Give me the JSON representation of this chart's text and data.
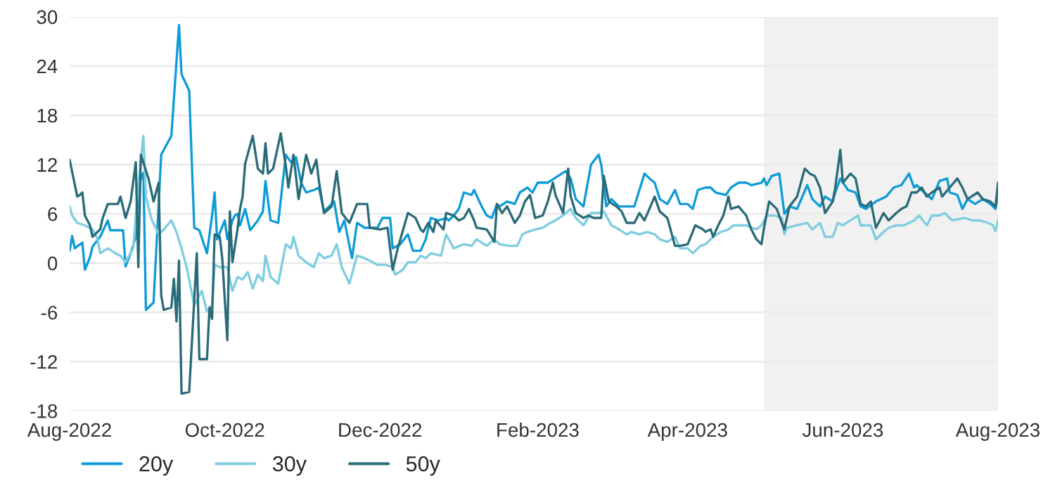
{
  "chart_data": {
    "type": "line",
    "xlim": [
      "2022-08-01",
      "2023-08-01"
    ],
    "xticks": [
      {
        "value": "2022-08-01",
        "label": "Aug-2022"
      },
      {
        "value": "2022-10-01",
        "label": "Oct-2022"
      },
      {
        "value": "2022-12-01",
        "label": "Dec-2022"
      },
      {
        "value": "2023-02-01",
        "label": "Feb-2023"
      },
      {
        "value": "2023-04-01",
        "label": "Apr-2023"
      },
      {
        "value": "2023-06-01",
        "label": "Jun-2023"
      },
      {
        "value": "2023-08-01",
        "label": "Aug-2023"
      }
    ],
    "ylim": [
      -18,
      30
    ],
    "yticks": [
      -18,
      -12,
      -6,
      0,
      6,
      12,
      18,
      24,
      30
    ],
    "grid": "y",
    "legend": "bottom left",
    "marker": "none",
    "line_style": "solid",
    "bands": [
      {
        "axis": "x",
        "from": "2023-05-01",
        "to": "2023-08-01",
        "color": "#f2f1f2"
      }
    ],
    "series": [
      {
        "name": "20y",
        "color": "#0e9bd8",
        "x": [
          "2022-08-01",
          "2022-08-02",
          "2022-08-03",
          "2022-08-06",
          "2022-08-07",
          "2022-08-09",
          "2022-08-10",
          "2022-08-13",
          "2022-08-16",
          "2022-08-17",
          "2022-08-22",
          "2022-08-23",
          "2022-08-25",
          "2022-08-27",
          "2022-08-28",
          "2022-08-30",
          "2022-08-31",
          "2022-09-03",
          "2022-09-06",
          "2022-09-10",
          "2022-09-13",
          "2022-09-14",
          "2022-09-17",
          "2022-09-19",
          "2022-09-21",
          "2022-09-24",
          "2022-09-26",
          "2022-09-27",
          "2022-09-28",
          "2022-10-01",
          "2022-10-02",
          "2022-10-04",
          "2022-10-05",
          "2022-10-06",
          "2022-10-07",
          "2022-10-09",
          "2022-10-11",
          "2022-10-14",
          "2022-10-16",
          "2022-10-17",
          "2022-10-19",
          "2022-10-22",
          "2022-10-25",
          "2022-10-27",
          "2022-10-29",
          "2022-10-31",
          "2022-11-02",
          "2022-11-05",
          "2022-11-07",
          "2022-11-09",
          "2022-11-13",
          "2022-11-15",
          "2022-11-17",
          "2022-11-20",
          "2022-11-22",
          "2022-11-25",
          "2022-11-27",
          "2022-11-30",
          "2022-12-02",
          "2022-12-05",
          "2022-12-06",
          "2022-12-09",
          "2022-12-12",
          "2022-12-14",
          "2022-12-17",
          "2022-12-19",
          "2022-12-21",
          "2022-12-24",
          "2022-12-27",
          "2022-12-28",
          "2022-12-30",
          "2023-01-01",
          "2023-01-03",
          "2023-01-06",
          "2023-01-07",
          "2023-01-10",
          "2023-01-12",
          "2023-01-14",
          "2023-01-16",
          "2023-01-17",
          "2023-01-20",
          "2023-01-23",
          "2023-01-25",
          "2023-01-28",
          "2023-01-30",
          "2023-02-01",
          "2023-02-05",
          "2023-02-06",
          "2023-02-09",
          "2023-02-12",
          "2023-02-14",
          "2023-02-16",
          "2023-02-19",
          "2023-02-22",
          "2023-02-25",
          "2023-02-26",
          "2023-02-28",
          "2023-03-02",
          "2023-03-05",
          "2023-03-08",
          "2023-03-11",
          "2023-03-13",
          "2023-03-15",
          "2023-03-17",
          "2023-03-19",
          "2023-03-21",
          "2023-03-24",
          "2023-03-27",
          "2023-03-29",
          "2023-04-01",
          "2023-04-03",
          "2023-04-05",
          "2023-04-08",
          "2023-04-10",
          "2023-04-12",
          "2023-04-16",
          "2023-04-18",
          "2023-04-21",
          "2023-04-24",
          "2023-04-26",
          "2023-04-30",
          "2023-05-01",
          "2023-05-02",
          "2023-05-04",
          "2023-05-07",
          "2023-05-09",
          "2023-05-11",
          "2023-05-14",
          "2023-05-18",
          "2023-05-20",
          "2023-05-23",
          "2023-05-25",
          "2023-05-28",
          "2023-05-29",
          "2023-05-31",
          "2023-06-03",
          "2023-06-06",
          "2023-06-08",
          "2023-06-10",
          "2023-06-14",
          "2023-06-18",
          "2023-06-21",
          "2023-06-24",
          "2023-06-27",
          "2023-06-29",
          "2023-06-30",
          "2023-07-03",
          "2023-07-06",
          "2023-07-09",
          "2023-07-12",
          "2023-07-13",
          "2023-07-16",
          "2023-07-18",
          "2023-07-20",
          "2023-07-23",
          "2023-07-26",
          "2023-07-29",
          "2023-07-31",
          "2023-08-01"
        ],
        "values": [
          1.5,
          3.3,
          1.8,
          2.5,
          -0.8,
          0.7,
          2,
          3.2,
          5.2,
          4,
          4,
          -0.4,
          1.2,
          3.2,
          9.5,
          11,
          -5.7,
          -4.8,
          13.2,
          15.5,
          29,
          23,
          21,
          4.3,
          4,
          1.2,
          5.8,
          8.6,
          2.9,
          5.2,
          2.9,
          5.2,
          5.8,
          6,
          4.6,
          6.6,
          4,
          5.2,
          6.3,
          10,
          5.2,
          4.9,
          13.2,
          12.3,
          12.9,
          9.8,
          8.6,
          8.9,
          9.2,
          6.3,
          7.5,
          3.8,
          5.2,
          0.6,
          4.9,
          4.3,
          4.3,
          4.3,
          5.5,
          5.5,
          1.8,
          2.3,
          3.5,
          1.5,
          1.5,
          2.9,
          5.5,
          5.2,
          5.5,
          5.2,
          5.8,
          6.6,
          8.6,
          8.3,
          8.9,
          6.9,
          5.8,
          5.5,
          7.2,
          6.9,
          7.5,
          7.2,
          8.6,
          9.2,
          8.6,
          9.8,
          9.8,
          10,
          10.6,
          11.2,
          10.3,
          7.8,
          6.9,
          12,
          13.2,
          12,
          6.9,
          7.8,
          6.9,
          6.9,
          6.9,
          8.9,
          10.9,
          10.3,
          9.8,
          7.8,
          7.2,
          8.9,
          7.2,
          7.2,
          6.6,
          8.9,
          9.2,
          9.2,
          8.6,
          8.3,
          9.2,
          9.8,
          9.8,
          9.5,
          9.8,
          10.3,
          9.5,
          10.6,
          10.9,
          6,
          6.9,
          6.6,
          9.5,
          7.8,
          6.9,
          8.1,
          7.5,
          8.6,
          10.3,
          8.9,
          8.6,
          6.9,
          6.6,
          7.5,
          8.1,
          9.2,
          9.5,
          10.9,
          9.2,
          9.5,
          8.6,
          7.8,
          10,
          10.3,
          8.6,
          8.3,
          6.6,
          7.8,
          7.2,
          7.8,
          7.2,
          6.6,
          8.3
        ]
      },
      {
        "name": "30y",
        "color": "#7fcde0",
        "x": [
          "2022-08-01",
          "2022-08-02",
          "2022-08-04",
          "2022-08-07",
          "2022-08-10",
          "2022-08-12",
          "2022-08-13",
          "2022-08-16",
          "2022-08-19",
          "2022-08-21",
          "2022-08-23",
          "2022-08-26",
          "2022-08-28",
          "2022-08-30",
          "2022-08-31",
          "2022-09-02",
          "2022-09-05",
          "2022-09-07",
          "2022-09-10",
          "2022-09-12",
          "2022-09-14",
          "2022-09-16",
          "2022-09-19",
          "2022-09-22",
          "2022-09-24",
          "2022-09-26",
          "2022-09-27",
          "2022-09-29",
          "2022-10-02",
          "2022-10-04",
          "2022-10-06",
          "2022-10-08",
          "2022-10-10",
          "2022-10-12",
          "2022-10-14",
          "2022-10-16",
          "2022-10-17",
          "2022-10-19",
          "2022-10-22",
          "2022-10-25",
          "2022-10-27",
          "2022-10-28",
          "2022-10-30",
          "2022-11-02",
          "2022-11-05",
          "2022-11-07",
          "2022-11-09",
          "2022-11-12",
          "2022-11-14",
          "2022-11-16",
          "2022-11-19",
          "2022-11-22",
          "2022-11-25",
          "2022-11-27",
          "2022-11-30",
          "2022-12-03",
          "2022-12-06",
          "2022-12-07",
          "2022-12-10",
          "2022-12-12",
          "2022-12-15",
          "2022-12-17",
          "2022-12-19",
          "2022-12-21",
          "2022-12-25",
          "2022-12-27",
          "2022-12-30",
          "2023-01-03",
          "2023-01-06",
          "2023-01-08",
          "2023-01-12",
          "2023-01-15",
          "2023-01-17",
          "2023-01-21",
          "2023-01-24",
          "2023-01-26",
          "2023-01-28",
          "2023-01-31",
          "2023-02-03",
          "2023-02-06",
          "2023-02-08",
          "2023-02-11",
          "2023-02-14",
          "2023-02-16",
          "2023-02-19",
          "2023-02-22",
          "2023-02-25",
          "2023-02-27",
          "2023-03-02",
          "2023-03-05",
          "2023-03-08",
          "2023-03-10",
          "2023-03-13",
          "2023-03-16",
          "2023-03-19",
          "2023-03-21",
          "2023-03-24",
          "2023-03-27",
          "2023-03-29",
          "2023-04-01",
          "2023-04-03",
          "2023-04-06",
          "2023-04-08",
          "2023-04-11",
          "2023-04-14",
          "2023-04-17",
          "2023-04-19",
          "2023-04-22",
          "2023-04-24",
          "2023-04-28",
          "2023-04-30",
          "2023-05-02",
          "2023-05-05",
          "2023-05-08",
          "2023-05-09",
          "2023-05-10",
          "2023-05-14",
          "2023-05-18",
          "2023-05-20",
          "2023-05-23",
          "2023-05-25",
          "2023-05-28",
          "2023-05-30",
          "2023-06-01",
          "2023-06-04",
          "2023-06-07",
          "2023-06-08",
          "2023-06-12",
          "2023-06-14",
          "2023-06-17",
          "2023-06-19",
          "2023-06-22",
          "2023-06-25",
          "2023-06-29",
          "2023-07-01",
          "2023-07-04",
          "2023-07-06",
          "2023-07-09",
          "2023-07-11",
          "2023-07-14",
          "2023-07-19",
          "2023-07-22",
          "2023-07-25",
          "2023-07-28",
          "2023-07-30",
          "2023-07-31",
          "2023-08-01"
        ],
        "values": [
          6.9,
          5.8,
          4.9,
          4.6,
          4.1,
          2.9,
          1.2,
          1.8,
          1.2,
          0.9,
          0.1,
          1.8,
          9.5,
          15.5,
          8.1,
          5.5,
          3.5,
          4.1,
          5.2,
          3.8,
          1.8,
          -0.5,
          -5.1,
          -3.4,
          -5.9,
          -5.1,
          -0.2,
          -0.5,
          -0.5,
          -3.4,
          -1.7,
          -2,
          -1.1,
          -3.1,
          -1.4,
          -2.2,
          0.9,
          -1.7,
          -2.5,
          2.3,
          1.8,
          3.2,
          0.9,
          0.1,
          -0.5,
          1.2,
          0.6,
          0.9,
          2.3,
          -0.5,
          -2.5,
          0.9,
          0.6,
          0.3,
          -0.2,
          -0.2,
          -0.5,
          -1.4,
          -0.8,
          0.1,
          0.1,
          0.9,
          0.6,
          1.2,
          0.9,
          3.5,
          1.8,
          2.3,
          2.1,
          2.9,
          2.1,
          2.9,
          2.3,
          2.1,
          2.1,
          3.5,
          3.8,
          4.1,
          4.3,
          4.9,
          5.2,
          5.8,
          6.6,
          5.5,
          4.6,
          6.1,
          6.1,
          6.3,
          4.6,
          4.1,
          3.5,
          3.8,
          3.5,
          3.8,
          3.5,
          2.9,
          2.6,
          3.2,
          1.8,
          1.8,
          1.2,
          2.1,
          2.3,
          3.2,
          3.8,
          4.1,
          4.6,
          4.6,
          4.6,
          4.1,
          4.6,
          5.8,
          5.8,
          5.5,
          3.5,
          4.3,
          4.6,
          4.9,
          4.1,
          4.9,
          3.2,
          3.2,
          4.9,
          4.6,
          5.2,
          5.8,
          4.6,
          4.6,
          2.9,
          3.8,
          4.3,
          4.6,
          4.6,
          5.2,
          5.8,
          4.6,
          5.8,
          5.8,
          6.1,
          5.2,
          5.5,
          5.2,
          5.2,
          4.9,
          4.6,
          3.9,
          5.2
        ]
      },
      {
        "name": "50y",
        "color": "#2a6b78",
        "x": [
          "2022-08-01",
          "2022-08-04",
          "2022-08-05",
          "2022-08-06",
          "2022-08-07",
          "2022-08-09",
          "2022-08-10",
          "2022-08-13",
          "2022-08-14",
          "2022-08-16",
          "2022-08-18",
          "2022-08-20",
          "2022-08-21",
          "2022-08-23",
          "2022-08-25",
          "2022-08-27",
          "2022-08-28",
          "2022-08-29",
          "2022-09-01",
          "2022-09-03",
          "2022-09-05",
          "2022-09-06",
          "2022-09-07",
          "2022-09-10",
          "2022-09-11",
          "2022-09-12",
          "2022-09-13",
          "2022-09-14",
          "2022-09-17",
          "2022-09-20",
          "2022-09-21",
          "2022-09-24",
          "2022-09-25",
          "2022-09-26",
          "2022-09-27",
          "2022-09-29",
          "2022-09-30",
          "2022-10-02",
          "2022-10-03",
          "2022-10-04",
          "2022-10-06",
          "2022-10-07",
          "2022-10-08",
          "2022-10-09",
          "2022-10-12",
          "2022-10-14",
          "2022-10-16",
          "2022-10-17",
          "2022-10-18",
          "2022-10-20",
          "2022-10-23",
          "2022-10-25",
          "2022-10-26",
          "2022-10-28",
          "2022-10-30",
          "2022-11-02",
          "2022-11-04",
          "2022-11-06",
          "2022-11-07",
          "2022-11-09",
          "2022-11-12",
          "2022-11-14",
          "2022-11-16",
          "2022-11-19",
          "2022-11-22",
          "2022-11-26",
          "2022-11-27",
          "2022-12-01",
          "2022-12-04",
          "2022-12-06",
          "2022-12-08",
          "2022-12-12",
          "2022-12-15",
          "2022-12-17",
          "2022-12-18",
          "2022-12-20",
          "2022-12-22",
          "2022-12-23",
          "2022-12-26",
          "2022-12-27",
          "2022-12-30",
          "2023-01-01",
          "2023-01-03",
          "2023-01-05",
          "2023-01-07",
          "2023-01-08",
          "2023-01-12",
          "2023-01-15",
          "2023-01-16",
          "2023-01-18",
          "2023-01-20",
          "2023-01-23",
          "2023-01-25",
          "2023-01-27",
          "2023-01-29",
          "2023-01-31",
          "2023-02-03",
          "2023-02-05",
          "2023-02-07",
          "2023-02-08",
          "2023-02-11",
          "2023-02-13",
          "2023-02-14",
          "2023-02-16",
          "2023-02-19",
          "2023-02-21",
          "2023-02-23",
          "2023-02-26",
          "2023-02-27",
          "2023-03-01",
          "2023-03-04",
          "2023-03-06",
          "2023-03-08",
          "2023-03-11",
          "2023-03-13",
          "2023-03-15",
          "2023-03-19",
          "2023-03-21",
          "2023-03-24",
          "2023-03-27",
          "2023-03-29",
          "2023-04-01",
          "2023-04-04",
          "2023-04-07",
          "2023-04-08",
          "2023-04-10",
          "2023-04-11",
          "2023-04-13",
          "2023-04-15",
          "2023-04-17",
          "2023-04-18",
          "2023-04-21",
          "2023-04-24",
          "2023-04-26",
          "2023-04-28",
          "2023-04-30",
          "2023-05-01",
          "2023-05-03",
          "2023-05-06",
          "2023-05-08",
          "2023-05-09",
          "2023-05-11",
          "2023-05-14",
          "2023-05-17",
          "2023-05-19",
          "2023-05-21",
          "2023-05-23",
          "2023-05-25",
          "2023-05-28",
          "2023-05-29",
          "2023-05-31",
          "2023-06-01",
          "2023-06-04",
          "2023-06-06",
          "2023-06-08",
          "2023-06-10",
          "2023-06-12",
          "2023-06-14",
          "2023-06-17",
          "2023-06-19",
          "2023-06-22",
          "2023-06-24",
          "2023-06-26",
          "2023-06-28",
          "2023-06-30",
          "2023-07-02",
          "2023-07-04",
          "2023-07-06",
          "2023-07-09",
          "2023-07-10",
          "2023-07-13",
          "2023-07-16",
          "2023-07-18",
          "2023-07-20",
          "2023-07-24",
          "2023-07-26",
          "2023-07-29",
          "2023-07-31",
          "2023-08-01"
        ],
        "values": [
          12.6,
          8.1,
          8.3,
          8.6,
          5.8,
          4.6,
          3.2,
          4.1,
          5.5,
          7.2,
          7.2,
          7.2,
          8.1,
          5.5,
          7.5,
          12.3,
          -0.5,
          13.2,
          10.3,
          7.5,
          9.8,
          -3.9,
          -5.7,
          -5.4,
          -1.9,
          -7.1,
          0.3,
          -15.9,
          -15.7,
          1.2,
          -11.7,
          -11.7,
          -5.4,
          -6.8,
          3.5,
          3.2,
          0.6,
          -9.4,
          6.3,
          0.1,
          4.1,
          6.6,
          8.1,
          12.1,
          15.5,
          11.5,
          10.9,
          14.6,
          10.9,
          11.5,
          15.8,
          11.8,
          9.2,
          13.2,
          7.8,
          13.2,
          10.9,
          12.6,
          10,
          6.1,
          6.9,
          11.2,
          6.1,
          4.9,
          7.2,
          7.2,
          4.3,
          4.1,
          4.3,
          -0.8,
          1.8,
          6.1,
          5.5,
          4.1,
          3.8,
          4.9,
          3.8,
          5.2,
          4.1,
          6.1,
          5.8,
          5.2,
          5.5,
          6.6,
          5.2,
          4.3,
          4.1,
          2.6,
          7.2,
          6.1,
          6.9,
          4.9,
          5.8,
          7.5,
          8.3,
          5.5,
          5.8,
          7.5,
          9.8,
          8.3,
          6.1,
          11.5,
          8.1,
          6.1,
          5.5,
          5.8,
          5.5,
          5.5,
          10.6,
          7.5,
          6.9,
          6.3,
          4.9,
          4.9,
          6.1,
          5.2,
          8.1,
          6.3,
          5.5,
          2.1,
          2.1,
          2.3,
          4.6,
          4.1,
          3.8,
          4.1,
          3.2,
          4.6,
          5.8,
          8.1,
          6.6,
          6.9,
          5.8,
          4.1,
          2.9,
          2.3,
          4.3,
          7.5,
          6.6,
          4.9,
          4.1,
          6.9,
          8.1,
          11.5,
          10.9,
          10.6,
          9.2,
          6.1,
          7.5,
          9.2,
          13.8,
          9.8,
          10.9,
          10.3,
          7.2,
          6.9,
          7.5,
          4.3,
          6.1,
          5.2,
          6.1,
          6.6,
          6.9,
          8.6,
          8.6,
          9.2,
          8.1,
          8.6,
          9.2,
          8.1,
          9.2,
          10.3,
          9.2,
          7.8,
          8.6,
          7.8,
          7.5,
          6.9,
          9.8
        ]
      }
    ]
  }
}
